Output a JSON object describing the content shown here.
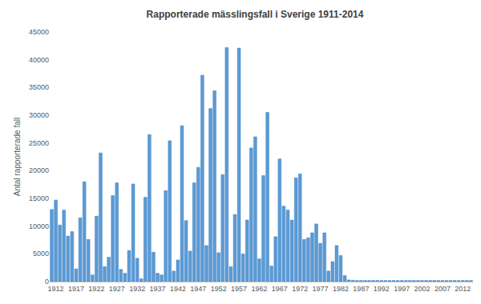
{
  "chart_data": {
    "type": "bar",
    "title": "Rapporterade mässlingsfall i Sverige 1911-2014",
    "y_label": "Antal rapporterade fall",
    "x": [
      1911,
      1912,
      1913,
      1914,
      1915,
      1916,
      1917,
      1918,
      1919,
      1920,
      1921,
      1922,
      1923,
      1924,
      1925,
      1926,
      1927,
      1928,
      1929,
      1930,
      1931,
      1932,
      1933,
      1934,
      1935,
      1936,
      1937,
      1938,
      1939,
      1940,
      1941,
      1942,
      1943,
      1944,
      1945,
      1946,
      1947,
      1948,
      1949,
      1950,
      1951,
      1952,
      1953,
      1954,
      1955,
      1956,
      1957,
      1958,
      1959,
      1960,
      1961,
      1962,
      1963,
      1964,
      1965,
      1966,
      1967,
      1968,
      1969,
      1970,
      1971,
      1972,
      1973,
      1974,
      1975,
      1976,
      1977,
      1978,
      1979,
      1980,
      1981,
      1982,
      1983,
      1984,
      1985,
      1986,
      1987,
      1988,
      1989,
      1990,
      1991,
      1992,
      1993,
      1994,
      1995,
      1996,
      1997,
      1998,
      1999,
      2000,
      2001,
      2002,
      2003,
      2004,
      2005,
      2006,
      2007,
      2008,
      2009,
      2010,
      2011,
      2012,
      2013,
      2014
    ],
    "values": [
      13000,
      14700,
      10200,
      12900,
      8200,
      9000,
      2300,
      11500,
      18000,
      7600,
      1200,
      11800,
      23200,
      2700,
      4400,
      15500,
      17800,
      2200,
      1500,
      5600,
      17600,
      4200,
      500,
      15200,
      26500,
      5300,
      1500,
      1200,
      16400,
      25400,
      1900,
      3900,
      28100,
      11000,
      5500,
      17800,
      20600,
      37200,
      6500,
      31200,
      34400,
      5200,
      19300,
      42200,
      2700,
      12100,
      42100,
      5000,
      11100,
      24100,
      26100,
      4100,
      19100,
      30500,
      2800,
      8100,
      22100,
      13600,
      12900,
      11100,
      18700,
      19400,
      7600,
      7900,
      8800,
      10400,
      6900,
      8800,
      1900,
      3600,
      6500,
      4700,
      1100,
      300,
      250,
      200,
      200,
      200,
      200,
      200,
      200,
      200,
      200,
      200,
      200,
      200,
      200,
      200,
      200,
      200,
      200,
      200,
      200,
      200,
      200,
      200,
      200,
      200,
      200,
      200,
      200,
      200,
      200,
      200
    ],
    "color": "#5b9bd5",
    "xlim": [
      1910.5,
      2014.5
    ],
    "xticks": [
      1912,
      1917,
      1922,
      1927,
      1932,
      1937,
      1942,
      1947,
      1952,
      1957,
      1962,
      1967,
      1972,
      1977,
      1982,
      1987,
      1992,
      1997,
      2002,
      2007,
      2012
    ],
    "ylim": [
      0,
      45000
    ],
    "yticks": [
      0,
      5000,
      10000,
      15000,
      20000,
      25000,
      30000,
      35000,
      40000,
      45000
    ],
    "grid": false
  }
}
